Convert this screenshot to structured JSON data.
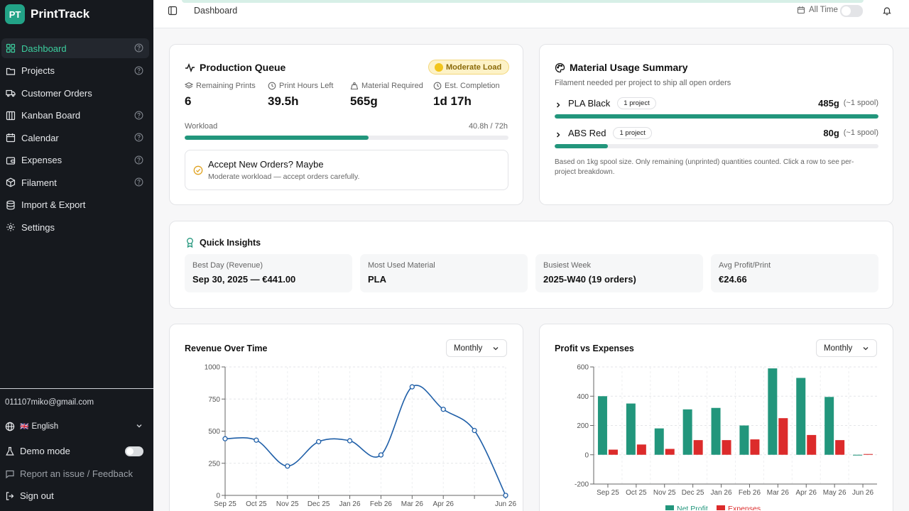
{
  "brand": {
    "logo": "PT",
    "name": "PrintTrack",
    "accent": "#22a387"
  },
  "sidebar": {
    "items": [
      {
        "label": "Dashboard",
        "icon": "grid-icon",
        "help": true,
        "active": true
      },
      {
        "label": "Projects",
        "icon": "folder-icon",
        "help": true
      },
      {
        "label": "Customer Orders",
        "icon": "truck-icon",
        "help": false
      },
      {
        "label": "Kanban Board",
        "icon": "kanban-icon",
        "help": true
      },
      {
        "label": "Calendar",
        "icon": "calendar-icon",
        "help": true
      },
      {
        "label": "Expenses",
        "icon": "wallet-icon",
        "help": true
      },
      {
        "label": "Filament",
        "icon": "package-icon",
        "help": true
      },
      {
        "label": "Import & Export",
        "icon": "database-icon",
        "help": false
      },
      {
        "label": "Settings",
        "icon": "gear-icon",
        "help": false
      }
    ],
    "email": "011107miko@gmail.com",
    "language": {
      "flag": "🇬🇧",
      "label": "English"
    },
    "demo_mode": "Demo mode",
    "report": "Report an issue / Feedback",
    "sign_out": "Sign out"
  },
  "topbar": {
    "breadcrumb": "Dashboard",
    "range_label": "All Time"
  },
  "queue": {
    "title": "Production Queue",
    "badge": "Moderate Load",
    "stats": [
      {
        "label": "Remaining Prints",
        "value": "6",
        "icon": "layers-icon"
      },
      {
        "label": "Print Hours Left",
        "value": "39.5h",
        "icon": "clock-icon"
      },
      {
        "label": "Material Required",
        "value": "565g",
        "icon": "weight-icon"
      },
      {
        "label": "Est. Completion",
        "value": "1d 17h",
        "icon": "clock-icon"
      }
    ],
    "workload_label": "Workload",
    "workload_value": "40.8h / 72h",
    "workload_fraction": 0.567,
    "accept_title": "Accept New Orders? Maybe",
    "accept_sub": "Moderate workload — accept orders carefully."
  },
  "material": {
    "title": "Material Usage Summary",
    "subtitle": "Filament needed per project to ship all open orders",
    "rows": [
      {
        "name": "PLA Black",
        "projects": "1 project",
        "grams": "485g",
        "spool": "(~1 spool)",
        "fraction": 1.0
      },
      {
        "name": "ABS Red",
        "projects": "1 project",
        "grams": "80g",
        "spool": "(~1 spool)",
        "fraction": 0.165
      }
    ],
    "note": "Based on 1kg spool size. Only remaining (unprinted) quantities counted. Click a row to see per-project breakdown."
  },
  "insights": {
    "title": "Quick Insights",
    "items": [
      {
        "label": "Best Day (Revenue)",
        "value": "Sep 30, 2025 — €441.00"
      },
      {
        "label": "Most Used Material",
        "value": "PLA"
      },
      {
        "label": "Busiest Week",
        "value": "2025-W40 (19 orders)"
      },
      {
        "label": "Avg Profit/Print",
        "value": "€24.66"
      }
    ]
  },
  "revenue_chart": {
    "title": "Revenue Over Time",
    "period": "Monthly"
  },
  "profit_chart": {
    "title": "Profit vs Expenses",
    "period": "Monthly"
  },
  "chart_data": [
    {
      "type": "line",
      "title": "Revenue Over Time",
      "categories": [
        "Sep 25",
        "Oct 25",
        "Nov 25",
        "Dec 25",
        "Jan 26",
        "Feb 26",
        "Mar 26",
        "Apr 26",
        "May 26",
        "Jun 26"
      ],
      "x_tick_labels": [
        "Sep 25",
        "Oct 25",
        "Nov 25",
        "Dec 25",
        "Jan 26",
        "Feb 26",
        "Mar 26",
        "Apr 26",
        "Jun 26"
      ],
      "values": [
        441,
        430,
        228,
        418,
        425,
        315,
        845,
        670,
        505,
        0
      ],
      "ylim": [
        0,
        1000
      ],
      "yticks": [
        0,
        250,
        500,
        750,
        1000
      ],
      "color": "#1f5fa8",
      "grid": true
    },
    {
      "type": "bar",
      "title": "Profit vs Expenses",
      "categories": [
        "Sep 25",
        "Oct 25",
        "Nov 25",
        "Dec 25",
        "Jan 26",
        "Feb 26",
        "Mar 26",
        "Apr 26",
        "May 26",
        "Jun 26"
      ],
      "series": [
        {
          "name": "Net Profit",
          "color": "#22967c",
          "values": [
            400,
            350,
            180,
            310,
            320,
            200,
            590,
            525,
            395,
            -5
          ]
        },
        {
          "name": "Expenses",
          "color": "#dc2b2b",
          "values": [
            35,
            70,
            40,
            100,
            100,
            105,
            250,
            135,
            100,
            5
          ]
        }
      ],
      "ylim": [
        -200,
        600
      ],
      "yticks": [
        -200,
        0,
        200,
        400,
        600
      ],
      "legend": "bottom",
      "grid": true
    }
  ]
}
